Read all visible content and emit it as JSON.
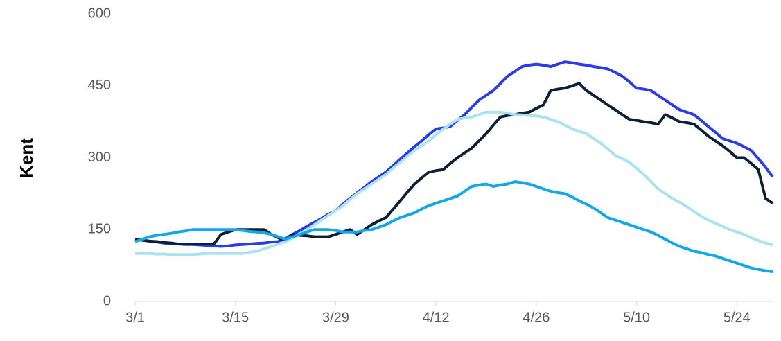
{
  "chart_data": {
    "type": "line",
    "y_label": "Kent",
    "categories": [
      "3/1",
      null,
      null,
      null,
      null,
      null,
      null,
      null,
      null,
      null,
      null,
      null,
      null,
      null,
      "3/15",
      null,
      null,
      null,
      null,
      null,
      null,
      null,
      null,
      null,
      null,
      null,
      null,
      null,
      "3/29",
      null,
      null,
      null,
      null,
      null,
      null,
      null,
      null,
      null,
      null,
      null,
      null,
      null,
      "4/12",
      null,
      null,
      null,
      null,
      null,
      null,
      null,
      null,
      null,
      null,
      null,
      null,
      null,
      "4/26",
      null,
      null,
      null,
      null,
      null,
      null,
      null,
      null,
      null,
      null,
      null,
      null,
      null,
      "5/10",
      null,
      null,
      null,
      null,
      null,
      null,
      null,
      null,
      null,
      null,
      null,
      null,
      null,
      "5/24",
      null,
      null,
      null,
      null,
      null
    ],
    "series": [
      {
        "color": "#2b3be6",
        "values": [
          130,
          128,
          126,
          124,
          122,
          120,
          120,
          119,
          119,
          118,
          117,
          116,
          115,
          116,
          118,
          119,
          120,
          121,
          122,
          124,
          125,
          132,
          140,
          148,
          157,
          165,
          173,
          182,
          190,
          203,
          215,
          227,
          238,
          250,
          260,
          270,
          283,
          297,
          310,
          323,
          335,
          348,
          360,
          362,
          365,
          378,
          390,
          405,
          420,
          430,
          440,
          455,
          470,
          480,
          490,
          493,
          495,
          493,
          490,
          495,
          500,
          498,
          495,
          493,
          490,
          488,
          485,
          478,
          470,
          458,
          445,
          443,
          440,
          430,
          420,
          410,
          400,
          395,
          390,
          378,
          365,
          353,
          340,
          335,
          330,
          323,
          315,
          298,
          280,
          260
        ]
      },
      {
        "color": "#0b1f35",
        "values": [
          130,
          128,
          126,
          125,
          123,
          122,
          120,
          120,
          120,
          120,
          120,
          120,
          140,
          145,
          150,
          150,
          150,
          150,
          150,
          140,
          133,
          125,
          140,
          138,
          137,
          135,
          135,
          135,
          140,
          145,
          150,
          140,
          150,
          160,
          168,
          175,
          192,
          210,
          228,
          245,
          258,
          270,
          273,
          275,
          288,
          300,
          310,
          320,
          335,
          350,
          368,
          385,
          388,
          390,
          393,
          395,
          403,
          410,
          440,
          443,
          445,
          450,
          455,
          440,
          430,
          420,
          410,
          400,
          390,
          380,
          378,
          375,
          373,
          370,
          390,
          383,
          375,
          373,
          370,
          358,
          345,
          335,
          325,
          313,
          300,
          300,
          288,
          275,
          215,
          205
        ]
      },
      {
        "color": "#a8e4f0",
        "values": [
          100,
          100,
          100,
          99,
          99,
          98,
          98,
          98,
          98,
          99,
          100,
          100,
          100,
          100,
          100,
          100,
          103,
          105,
          110,
          115,
          120,
          125,
          133,
          140,
          150,
          160,
          170,
          180,
          190,
          200,
          213,
          225,
          235,
          245,
          255,
          265,
          278,
          290,
          303,
          315,
          325,
          335,
          348,
          360,
          370,
          380,
          383,
          385,
          390,
          395,
          395,
          395,
          393,
          390,
          389,
          388,
          387,
          385,
          380,
          375,
          368,
          360,
          355,
          350,
          340,
          330,
          318,
          305,
          298,
          290,
          278,
          265,
          250,
          235,
          225,
          215,
          207,
          198,
          188,
          178,
          170,
          163,
          157,
          150,
          145,
          140,
          133,
          127,
          122,
          118
        ]
      },
      {
        "color": "#12a8e8",
        "values": [
          125,
          130,
          135,
          138,
          140,
          142,
          145,
          147,
          150,
          150,
          150,
          150,
          150,
          150,
          150,
          148,
          146,
          145,
          143,
          140,
          135,
          130,
          135,
          140,
          145,
          150,
          150,
          150,
          148,
          145,
          145,
          145,
          148,
          150,
          155,
          160,
          168,
          175,
          180,
          185,
          193,
          200,
          205,
          210,
          215,
          220,
          230,
          240,
          243,
          245,
          240,
          243,
          245,
          250,
          248,
          245,
          240,
          235,
          230,
          227,
          225,
          218,
          210,
          203,
          195,
          185,
          175,
          170,
          165,
          160,
          155,
          150,
          145,
          138,
          130,
          122,
          115,
          110,
          105,
          102,
          98,
          95,
          90,
          85,
          80,
          75,
          70,
          67,
          64,
          62
        ]
      }
    ],
    "ylim": [
      0,
      600
    ],
    "yticks": [
      0,
      150,
      300,
      450,
      600
    ],
    "grid": false
  }
}
